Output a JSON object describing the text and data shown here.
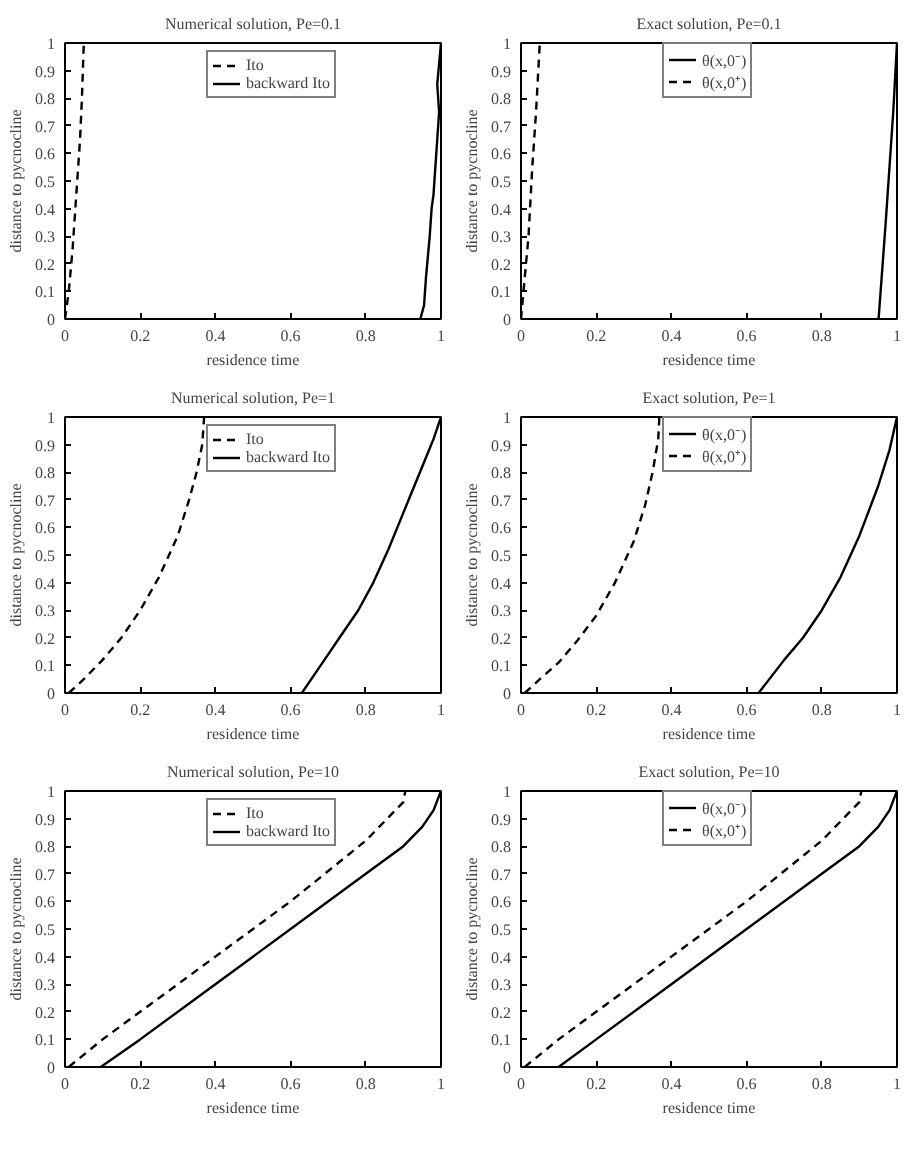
{
  "chart_data": [
    {
      "type": "line",
      "title": "Numerical solution, Pe=0.1",
      "xlabel": "residence time",
      "ylabel": "distance to pycnocline",
      "xlim": [
        0,
        1
      ],
      "ylim": [
        0,
        1
      ],
      "xticks": [
        0,
        0.2,
        0.4,
        0.6,
        0.8,
        1
      ],
      "yticks": [
        0,
        0.1,
        0.2,
        0.3,
        0.4,
        0.5,
        0.6,
        0.7,
        0.8,
        0.9,
        1
      ],
      "grid": false,
      "legend": "top",
      "series": [
        {
          "name": "Ito",
          "color": "#000000",
          "line_style": "dashed",
          "x": [
            0,
            0.01,
            0.02,
            0.03,
            0.04,
            0.045,
            0.05
          ],
          "values": [
            0,
            0.1,
            0.25,
            0.45,
            0.65,
            0.8,
            1
          ]
        },
        {
          "name": "backward Ito",
          "color": "#000000",
          "line_style": "solid",
          "x": [
            0.945,
            0.955,
            0.96,
            0.97,
            0.975,
            0.98,
            0.985,
            0.99,
            0.995,
            0.99,
            1
          ],
          "values": [
            0,
            0.05,
            0.15,
            0.3,
            0.4,
            0.45,
            0.55,
            0.65,
            0.75,
            0.85,
            1
          ]
        }
      ]
    },
    {
      "type": "line",
      "title": "Exact solution, Pe=0.1",
      "xlabel": "residence time",
      "ylabel": "distance to pycnocline",
      "xlim": [
        0,
        1
      ],
      "ylim": [
        0,
        1
      ],
      "xticks": [
        0,
        0.2,
        0.4,
        0.6,
        0.8,
        1
      ],
      "yticks": [
        0,
        0.1,
        0.2,
        0.3,
        0.4,
        0.5,
        0.6,
        0.7,
        0.8,
        0.9,
        1
      ],
      "grid": false,
      "legend": "top",
      "series": [
        {
          "name": "θ(x,0⁻)",
          "color": "#000000",
          "line_style": "solid",
          "x": [
            0.951,
            0.97,
            0.99,
            1
          ],
          "values": [
            0,
            0.35,
            0.75,
            1
          ]
        },
        {
          "name": "θ(x,0⁺)",
          "color": "#000000",
          "line_style": "dashed",
          "x": [
            0,
            0.01,
            0.02,
            0.03,
            0.04,
            0.05
          ],
          "values": [
            0,
            0.15,
            0.3,
            0.55,
            0.75,
            1
          ]
        }
      ]
    },
    {
      "type": "line",
      "title": "Numerical solution, Pe=1",
      "xlabel": "residence time",
      "ylabel": "distance to pycnocline",
      "xlim": [
        0,
        1
      ],
      "ylim": [
        0,
        1
      ],
      "xticks": [
        0,
        0.2,
        0.4,
        0.6,
        0.8,
        1
      ],
      "yticks": [
        0,
        0.1,
        0.2,
        0.3,
        0.4,
        0.5,
        0.6,
        0.7,
        0.8,
        0.9,
        1
      ],
      "grid": false,
      "legend": "top",
      "series": [
        {
          "name": "Ito",
          "color": "#000000",
          "line_style": "dashed",
          "x": [
            0.01,
            0.05,
            0.1,
            0.15,
            0.2,
            0.25,
            0.3,
            0.33,
            0.35,
            0.365,
            0.37
          ],
          "values": [
            0,
            0.05,
            0.12,
            0.2,
            0.3,
            0.42,
            0.57,
            0.7,
            0.8,
            0.9,
            1
          ]
        },
        {
          "name": "backward Ito",
          "color": "#000000",
          "line_style": "solid",
          "x": [
            0.63,
            0.68,
            0.73,
            0.78,
            0.82,
            0.86,
            0.89,
            0.92,
            0.95,
            0.98,
            1
          ],
          "values": [
            0,
            0.1,
            0.2,
            0.3,
            0.4,
            0.52,
            0.62,
            0.72,
            0.82,
            0.92,
            1
          ]
        }
      ]
    },
    {
      "type": "line",
      "title": "Exact solution, Pe=1",
      "xlabel": "residence time",
      "ylabel": "distance to pycnocline",
      "xlim": [
        0,
        1
      ],
      "ylim": [
        0,
        1
      ],
      "xticks": [
        0,
        0.2,
        0.4,
        0.6,
        0.8,
        1
      ],
      "yticks": [
        0,
        0.1,
        0.2,
        0.3,
        0.4,
        0.5,
        0.6,
        0.7,
        0.8,
        0.9,
        1
      ],
      "grid": false,
      "legend": "top",
      "series": [
        {
          "name": "θ(x,0⁻)",
          "color": "#000000",
          "line_style": "solid",
          "x": [
            0.632,
            0.7,
            0.75,
            0.8,
            0.85,
            0.9,
            0.95,
            0.98,
            1
          ],
          "values": [
            0,
            0.12,
            0.2,
            0.3,
            0.42,
            0.57,
            0.75,
            0.88,
            1
          ]
        },
        {
          "name": "θ(x,0⁺)",
          "color": "#000000",
          "line_style": "dashed",
          "x": [
            0.01,
            0.05,
            0.1,
            0.15,
            0.2,
            0.25,
            0.3,
            0.33,
            0.35,
            0.365,
            0.368
          ],
          "values": [
            0,
            0.05,
            0.11,
            0.19,
            0.28,
            0.4,
            0.55,
            0.68,
            0.8,
            0.92,
            1
          ]
        }
      ]
    },
    {
      "type": "line",
      "title": "Numerical solution, Pe=10",
      "xlabel": "residence time",
      "ylabel": "distance to pycnocline",
      "xlim": [
        0,
        1
      ],
      "ylim": [
        0,
        1
      ],
      "xticks": [
        0,
        0.2,
        0.4,
        0.6,
        0.8,
        1
      ],
      "yticks": [
        0,
        0.1,
        0.2,
        0.3,
        0.4,
        0.5,
        0.6,
        0.7,
        0.8,
        0.9,
        1
      ],
      "grid": false,
      "legend": "top",
      "series": [
        {
          "name": "Ito",
          "color": "#000000",
          "line_style": "dashed",
          "x": [
            0.01,
            0.1,
            0.2,
            0.4,
            0.6,
            0.8,
            0.9,
            0.905
          ],
          "values": [
            0,
            0.1,
            0.2,
            0.4,
            0.6,
            0.82,
            0.96,
            1
          ]
        },
        {
          "name": "backward Ito",
          "color": "#000000",
          "line_style": "solid",
          "x": [
            0.095,
            0.2,
            0.4,
            0.6,
            0.8,
            0.9,
            0.95,
            0.98,
            1
          ],
          "values": [
            0,
            0.1,
            0.3,
            0.5,
            0.7,
            0.8,
            0.87,
            0.93,
            1
          ]
        }
      ]
    },
    {
      "type": "line",
      "title": "Exact solution, Pe=10",
      "xlabel": "residence time",
      "ylabel": "distance to pycnocline",
      "xlim": [
        0,
        1
      ],
      "ylim": [
        0,
        1
      ],
      "xticks": [
        0,
        0.2,
        0.4,
        0.6,
        0.8,
        1
      ],
      "yticks": [
        0,
        0.1,
        0.2,
        0.3,
        0.4,
        0.5,
        0.6,
        0.7,
        0.8,
        0.9,
        1
      ],
      "grid": false,
      "legend": "top",
      "series": [
        {
          "name": "θ(x,0⁻)",
          "color": "#000000",
          "line_style": "solid",
          "x": [
            0.1,
            0.2,
            0.4,
            0.6,
            0.8,
            0.9,
            0.95,
            0.98,
            1
          ],
          "values": [
            0,
            0.1,
            0.3,
            0.5,
            0.7,
            0.8,
            0.87,
            0.93,
            1
          ]
        },
        {
          "name": "θ(x,0⁺)",
          "color": "#000000",
          "line_style": "dashed",
          "x": [
            0.01,
            0.1,
            0.2,
            0.4,
            0.6,
            0.8,
            0.9,
            0.905
          ],
          "values": [
            0,
            0.1,
            0.2,
            0.4,
            0.6,
            0.82,
            0.96,
            1
          ]
        }
      ]
    }
  ]
}
